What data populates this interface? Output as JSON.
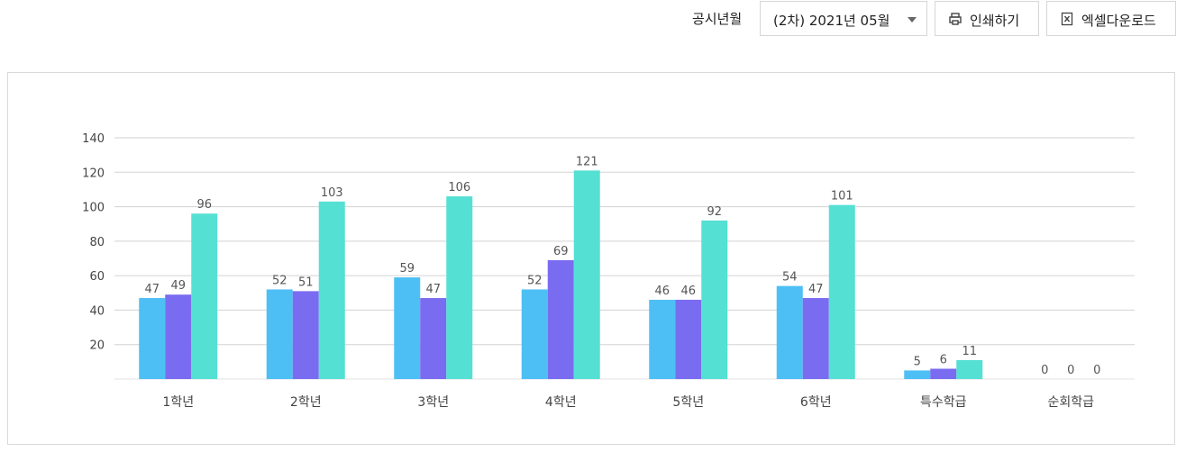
{
  "toolbar": {
    "period_label": "공시년월",
    "period_value": "(2차) 2021년 05월",
    "print_label": "인쇄하기",
    "excel_label": "엑셀다운로드"
  },
  "chart_data": {
    "type": "bar",
    "categories": [
      "1학년",
      "2학년",
      "3학년",
      "4학년",
      "5학년",
      "6학년",
      "특수학급",
      "순회학급"
    ],
    "series": [
      {
        "values": [
          47,
          52,
          59,
          52,
          46,
          54,
          5,
          0
        ],
        "color": "#4dbff5"
      },
      {
        "values": [
          49,
          51,
          47,
          69,
          46,
          47,
          6,
          0
        ],
        "color": "#7a6cf0"
      },
      {
        "values": [
          96,
          103,
          106,
          121,
          92,
          101,
          11,
          0
        ],
        "color": "#55e0d4"
      }
    ],
    "yticks": [
      20,
      40,
      60,
      80,
      100,
      120,
      140
    ],
    "ylim": [
      0,
      140
    ],
    "grid": true,
    "data_labels": true
  }
}
